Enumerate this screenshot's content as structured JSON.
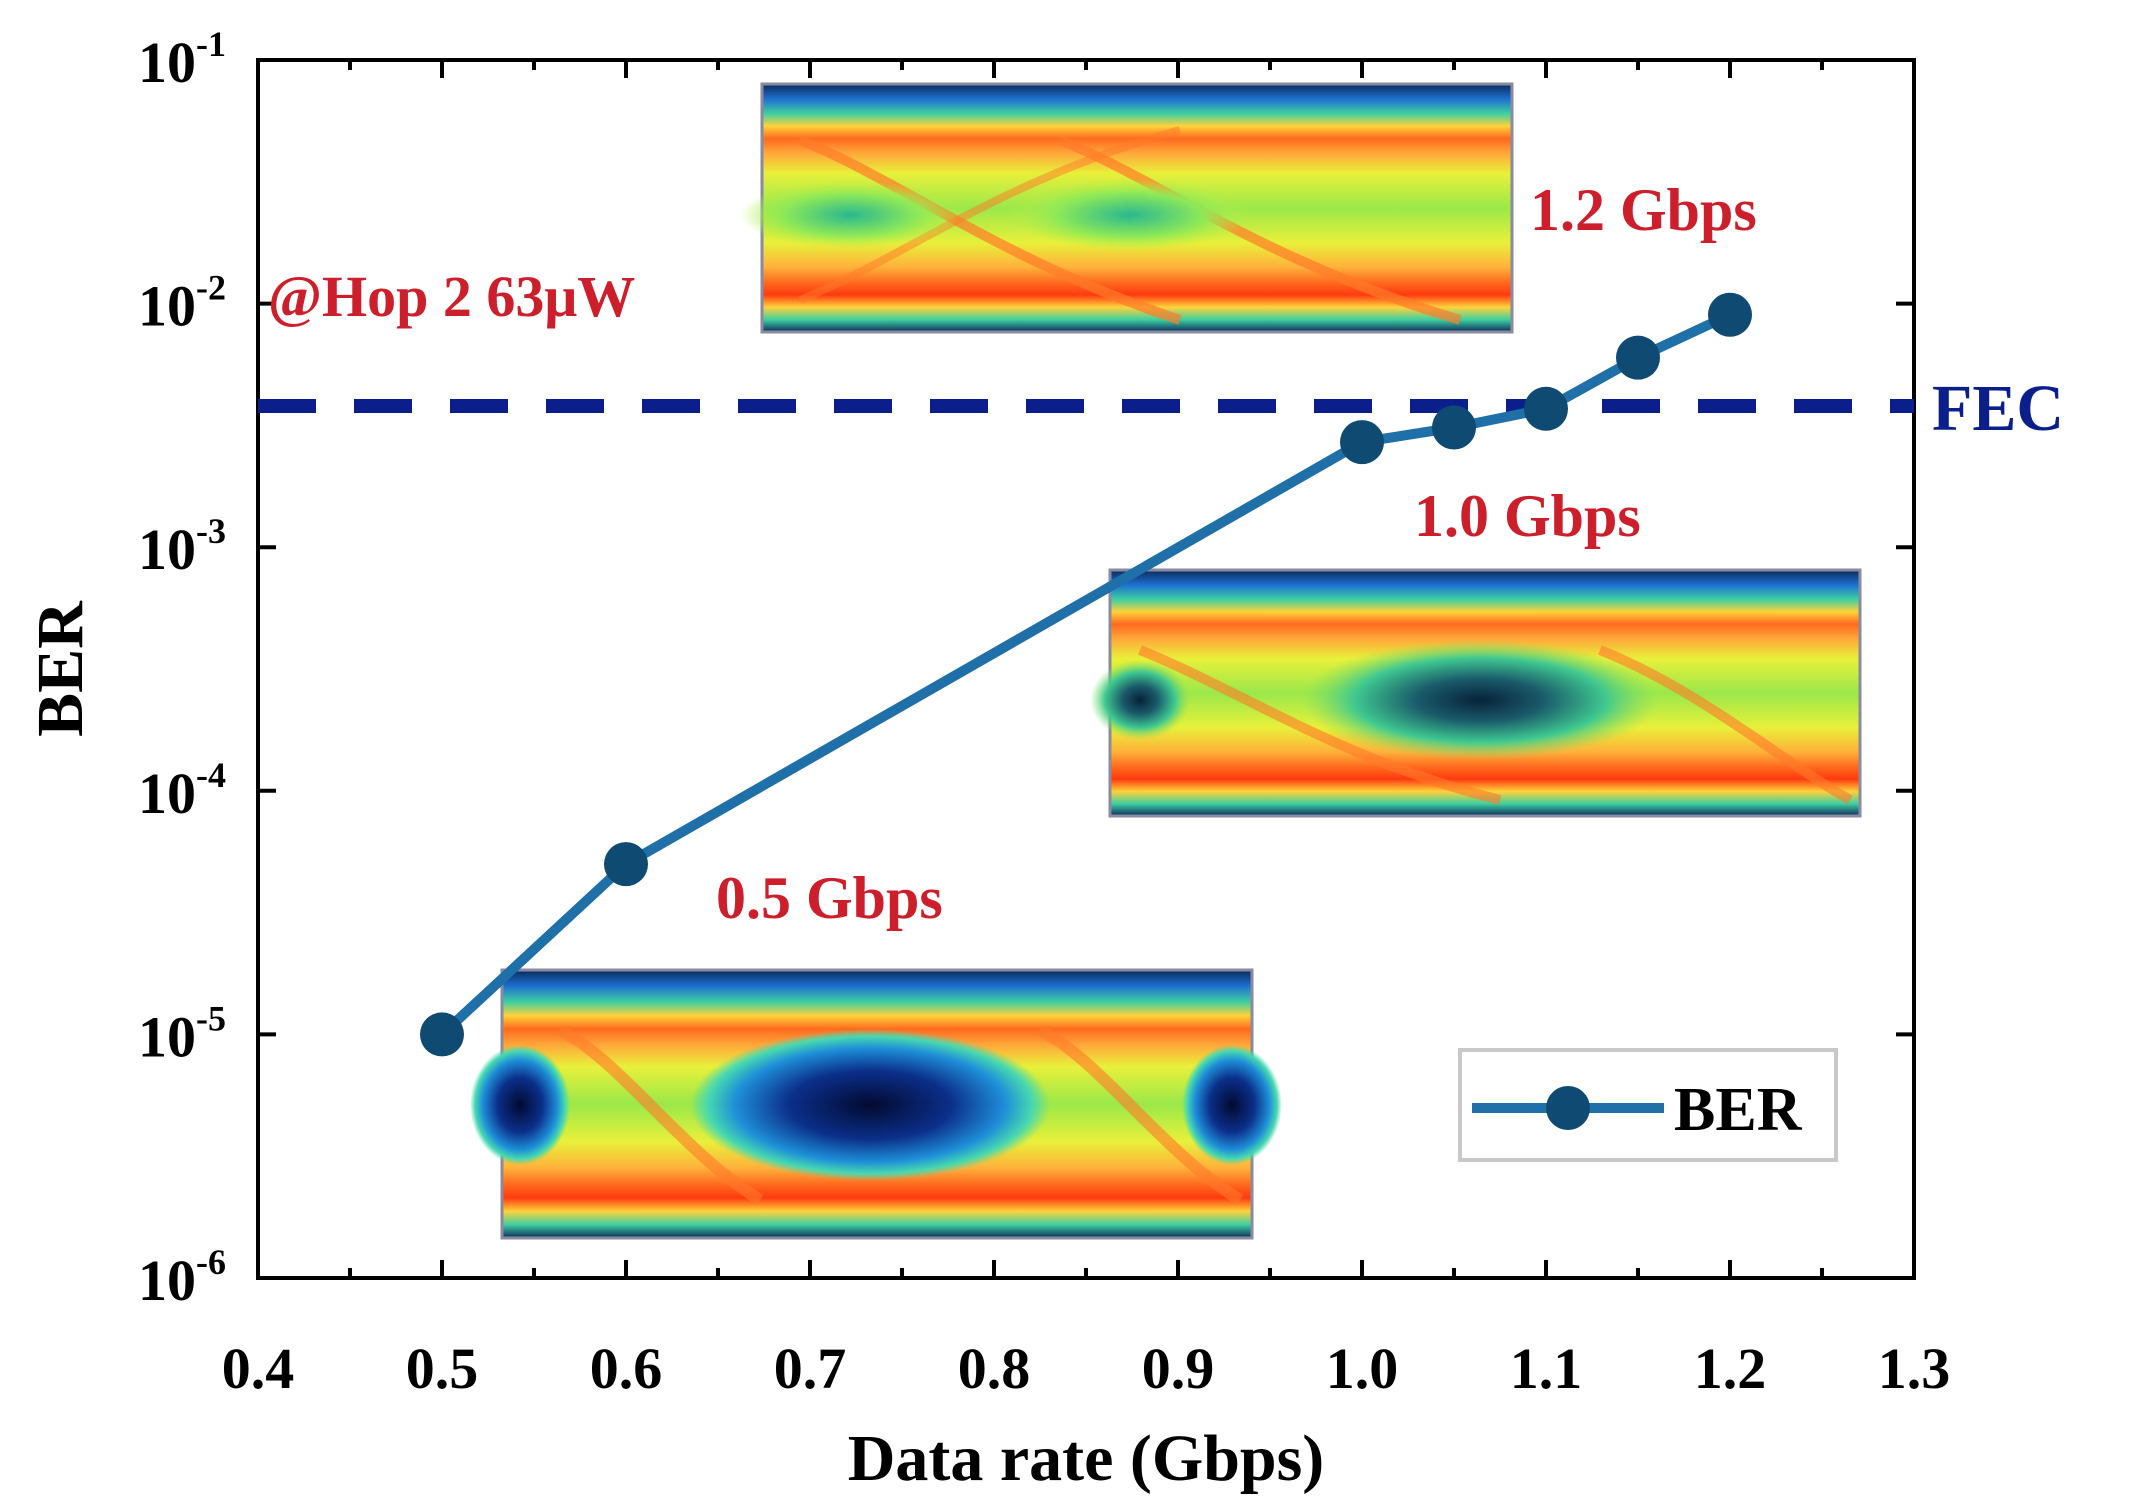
{
  "chart_data": {
    "type": "line",
    "title": "",
    "xlabel": "Data rate (Gbps)",
    "ylabel": "BER",
    "xlim": [
      0.4,
      1.3
    ],
    "ylim": [
      1e-06,
      0.1
    ],
    "yscale": "log",
    "x_ticks": [
      "0.4",
      "0.5",
      "0.6",
      "0.7",
      "0.8",
      "0.9",
      "1.0",
      "1.1",
      "1.2",
      "1.3"
    ],
    "y_ticks": [
      {
        "base": "10",
        "exp": "-1"
      },
      {
        "base": "10",
        "exp": "-2"
      },
      {
        "base": "10",
        "exp": "-3"
      },
      {
        "base": "10",
        "exp": "-4"
      },
      {
        "base": "10",
        "exp": "-5"
      },
      {
        "base": "10",
        "exp": "-6"
      }
    ],
    "series": [
      {
        "name": "BER",
        "color": "#1f6fa8",
        "marker_color": "#0f4a72",
        "x": [
          0.5,
          0.6,
          1.0,
          1.05,
          1.1,
          1.15,
          1.2
        ],
        "y": [
          1e-05,
          5e-05,
          0.0027,
          0.0031,
          0.0037,
          0.006,
          0.009
        ]
      }
    ],
    "reference_line": {
      "label": "FEC",
      "y": 0.0038,
      "color": "#0b1f8c",
      "style": "dashed"
    },
    "annotations": {
      "condition": "@Hop 2 63μW",
      "eye_labels": [
        "1.2 Gbps",
        "1.0 Gbps",
        "0.5 Gbps"
      ],
      "annotation_color": "#cc1f2b"
    },
    "legend": {
      "position": "bottom-right",
      "label": "BER"
    },
    "eye_diagrams": [
      {
        "name": "eye-diagram-1-2-gbps",
        "rate": "1.2 Gbps",
        "eye_opening": "closed"
      },
      {
        "name": "eye-diagram-1-0-gbps",
        "rate": "1.0 Gbps",
        "eye_opening": "partially-open"
      },
      {
        "name": "eye-diagram-0-5-gbps",
        "rate": "0.5 Gbps",
        "eye_opening": "open"
      }
    ]
  }
}
